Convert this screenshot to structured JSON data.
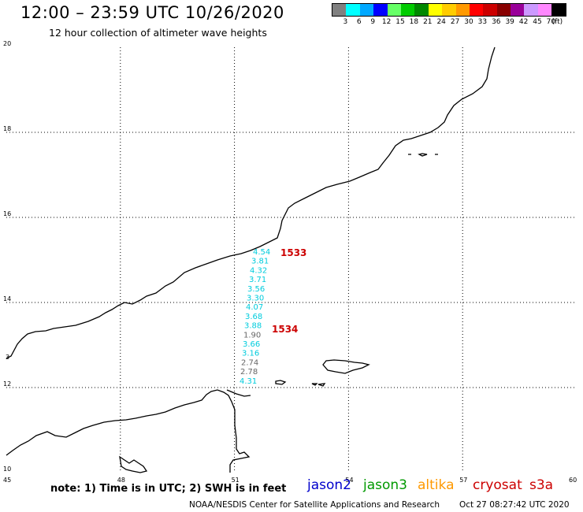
{
  "header": {
    "title": "12:00 – 23:59 UTC 10/26/2020",
    "subtitle": "12 hour collection of altimeter wave heights"
  },
  "color_scale": {
    "colors": [
      "#808080",
      "#00ffff",
      "#00a8ff",
      "#0000ff",
      "#66ff66",
      "#00cc00",
      "#008800",
      "#ffff00",
      "#ffcc00",
      "#ff9900",
      "#ff0000",
      "#cc0000",
      "#880000",
      "#990099",
      "#cc99ff",
      "#ff88ff",
      "#000000"
    ],
    "labels": [
      "3",
      "6",
      "9",
      "12",
      "15",
      "18",
      "21",
      "24",
      "27",
      "30",
      "33",
      "36",
      "39",
      "42",
      "45",
      "70"
    ],
    "unit": "(ft)"
  },
  "map": {
    "lon_labels": [
      "45",
      "48",
      "51",
      "54",
      "57",
      "60"
    ],
    "lat_labels": [
      "20",
      "18",
      "16",
      "14",
      "12",
      "10"
    ],
    "edge_lat_label": "3",
    "pass_labels": [
      "1533",
      "1534"
    ],
    "wave_heights": [
      {
        "value": "4.54",
        "satellite": "jason3",
        "color": "#00ccdd"
      },
      {
        "value": "3.81",
        "satellite": "jason3",
        "color": "#00ccdd"
      },
      {
        "value": "4.32",
        "satellite": "jason3",
        "color": "#00ccdd"
      },
      {
        "value": "3.71",
        "satellite": "jason3",
        "color": "#00ccdd"
      },
      {
        "value": "3.56",
        "satellite": "jason3",
        "color": "#00ccdd"
      },
      {
        "value": "3.30",
        "satellite": "jason3",
        "color": "#00ccdd"
      },
      {
        "value": "4.07",
        "satellite": "jason3",
        "color": "#00ccdd"
      },
      {
        "value": "3.68",
        "satellite": "jason3",
        "color": "#00ccdd"
      },
      {
        "value": "3.88",
        "satellite": "jason3",
        "color": "#00ccdd"
      },
      {
        "value": "1.90",
        "satellite": "jason3",
        "color": "#666666"
      },
      {
        "value": "3.66",
        "satellite": "jason3",
        "color": "#00ccdd"
      },
      {
        "value": "3.16",
        "satellite": "jason3",
        "color": "#00ccdd"
      },
      {
        "value": "2.74",
        "satellite": "jason3",
        "color": "#666666"
      },
      {
        "value": "2.78",
        "satellite": "jason3",
        "color": "#666666"
      },
      {
        "value": "4.31",
        "satellite": "jason3",
        "color": "#00ccdd"
      }
    ]
  },
  "note": "note: 1) Time is in UTC; 2) SWH is in feet",
  "satellites": [
    {
      "name": "jason2",
      "color": "#0000cc"
    },
    {
      "name": "jason3",
      "color": "#009900"
    },
    {
      "name": "altika",
      "color": "#ff9900"
    },
    {
      "name": "cryosat",
      "color": "#cc0000"
    },
    {
      "name": "s3a",
      "color": "#cc0000"
    }
  ],
  "footer": {
    "credit": "NOAA/NESDIS Center for Satellite Applications and Research",
    "timestamp": "Oct 27 08:27:42 UTC 2020"
  }
}
